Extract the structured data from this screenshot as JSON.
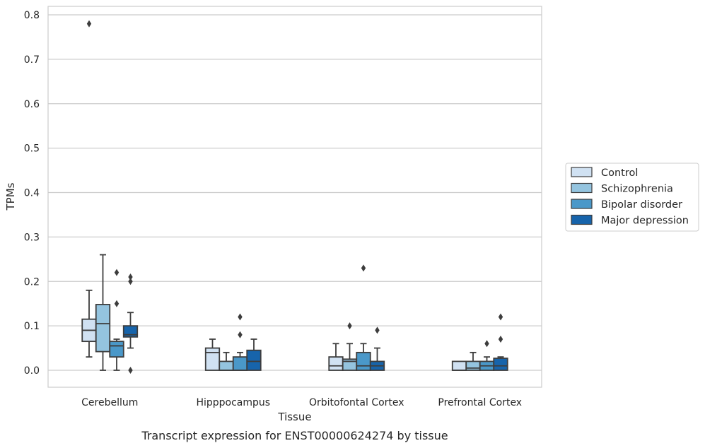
{
  "chart_data": {
    "type": "box",
    "title": "Transcript expression for ENST00000624274 by tissue",
    "xlabel": "Tissue",
    "ylabel": "TPMs",
    "ylim": [
      -0.04,
      0.82
    ],
    "yticks": [
      "0.0",
      "0.1",
      "0.2",
      "0.3",
      "0.4",
      "0.5",
      "0.6",
      "0.7",
      "0.8"
    ],
    "grid": "horizontal",
    "legend_position": "right",
    "categories": [
      "Cerebellum",
      "Hipppocampus",
      "Orbitofontal Cortex",
      "Prefrontal Cortex"
    ],
    "series": [
      {
        "name": "Control",
        "color": "#d0e1f2",
        "boxes": [
          {
            "whisker_low": 0.03,
            "q1": 0.065,
            "median": 0.09,
            "q3": 0.115,
            "whisker_high": 0.18,
            "outliers": [
              0.78
            ]
          },
          {
            "whisker_low": 0.0,
            "q1": 0.0,
            "median": 0.04,
            "q3": 0.05,
            "whisker_high": 0.07,
            "outliers": []
          },
          {
            "whisker_low": 0.0,
            "q1": 0.0,
            "median": 0.01,
            "q3": 0.03,
            "whisker_high": 0.06,
            "outliers": []
          },
          {
            "whisker_low": 0.0,
            "q1": 0.0,
            "median": 0.0,
            "q3": 0.02,
            "whisker_high": 0.02,
            "outliers": []
          }
        ]
      },
      {
        "name": "Schizophrenia",
        "color": "#94c4df",
        "boxes": [
          {
            "whisker_low": 0.0,
            "q1": 0.042,
            "median": 0.105,
            "q3": 0.148,
            "whisker_high": 0.26,
            "outliers": []
          },
          {
            "whisker_low": 0.0,
            "q1": 0.0,
            "median": 0.0,
            "q3": 0.02,
            "whisker_high": 0.04,
            "outliers": []
          },
          {
            "whisker_low": 0.0,
            "q1": 0.0,
            "median": 0.02,
            "q3": 0.025,
            "whisker_high": 0.06,
            "outliers": [
              0.1
            ]
          },
          {
            "whisker_low": 0.0,
            "q1": 0.0,
            "median": 0.005,
            "q3": 0.02,
            "whisker_high": 0.04,
            "outliers": []
          }
        ]
      },
      {
        "name": "Bipolar disorder",
        "color": "#4a98c9",
        "boxes": [
          {
            "whisker_low": 0.0,
            "q1": 0.03,
            "median": 0.055,
            "q3": 0.065,
            "whisker_high": 0.07,
            "outliers": [
              0.15,
              0.22
            ]
          },
          {
            "whisker_low": 0.0,
            "q1": 0.0,
            "median": 0.0,
            "q3": 0.03,
            "whisker_high": 0.04,
            "outliers": [
              0.08,
              0.12
            ]
          },
          {
            "whisker_low": 0.0,
            "q1": 0.0,
            "median": 0.01,
            "q3": 0.04,
            "whisker_high": 0.06,
            "outliers": [
              0.23
            ]
          },
          {
            "whisker_low": 0.0,
            "q1": 0.0,
            "median": 0.01,
            "q3": 0.02,
            "whisker_high": 0.03,
            "outliers": [
              0.06
            ]
          }
        ]
      },
      {
        "name": "Major depression",
        "color": "#1764ab",
        "boxes": [
          {
            "whisker_low": 0.05,
            "q1": 0.075,
            "median": 0.08,
            "q3": 0.1,
            "whisker_high": 0.13,
            "outliers": [
              0.0,
              0.2,
              0.21
            ]
          },
          {
            "whisker_low": 0.0,
            "q1": 0.0,
            "median": 0.02,
            "q3": 0.045,
            "whisker_high": 0.07,
            "outliers": []
          },
          {
            "whisker_low": 0.0,
            "q1": 0.0,
            "median": 0.01,
            "q3": 0.02,
            "whisker_high": 0.05,
            "outliers": [
              0.09
            ]
          },
          {
            "whisker_low": 0.0,
            "q1": 0.0,
            "median": 0.01,
            "q3": 0.027,
            "whisker_high": 0.03,
            "outliers": [
              0.07,
              0.12
            ]
          }
        ]
      }
    ]
  }
}
